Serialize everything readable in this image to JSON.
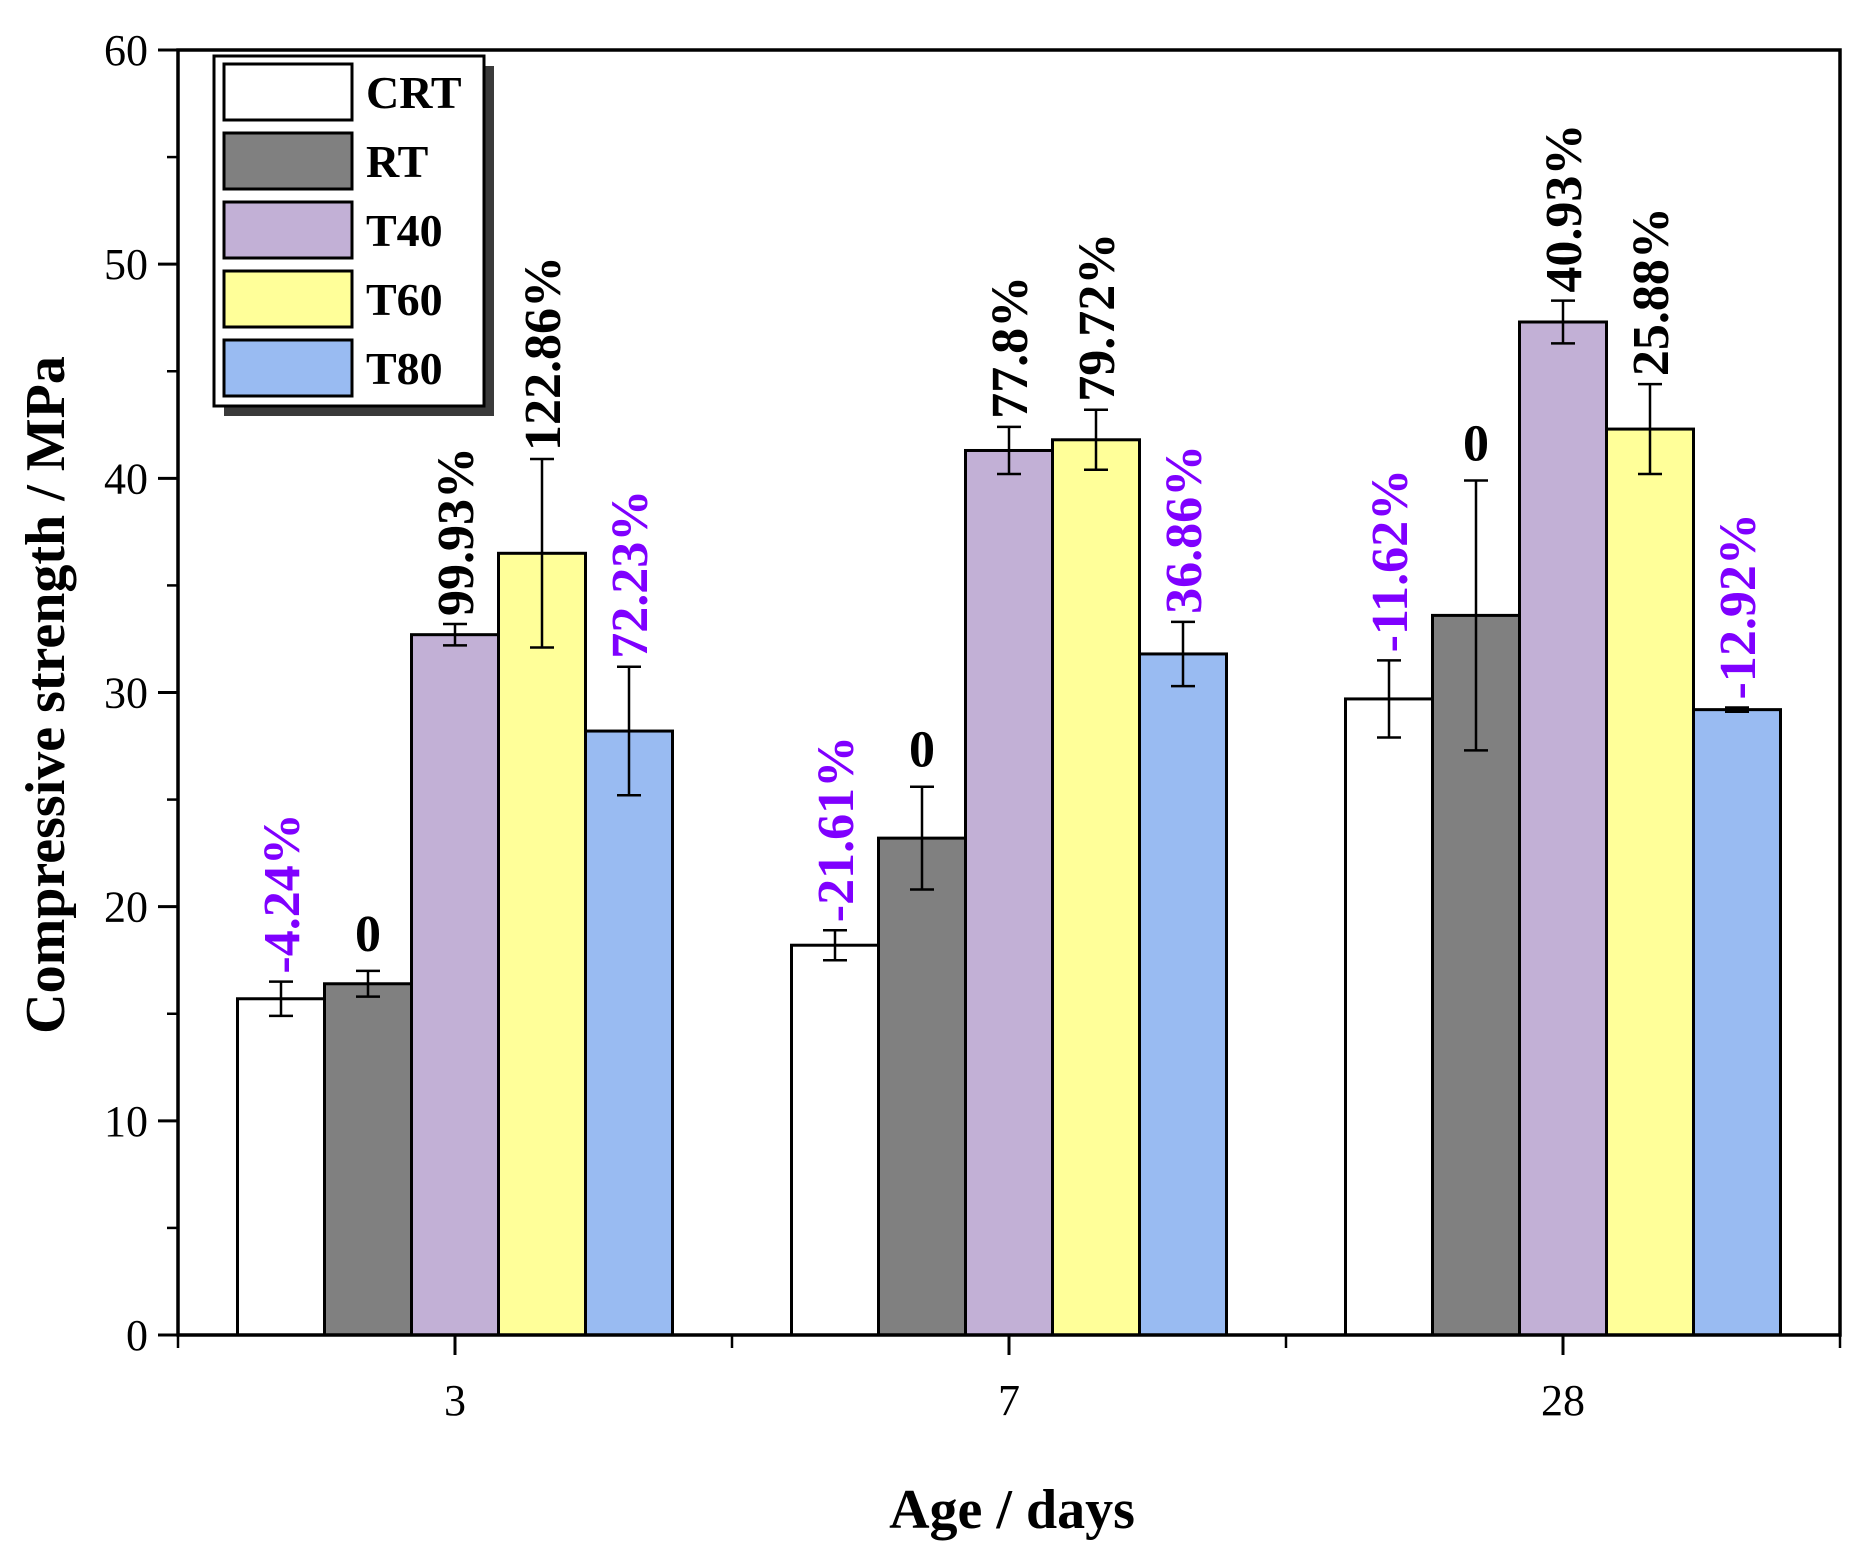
{
  "chart_data": {
    "type": "bar",
    "title": "",
    "xlabel": "Age / days",
    "ylabel": "Compressive strength / MPa",
    "ylim": [
      0,
      60
    ],
    "yticks": [
      0,
      10,
      20,
      30,
      40,
      50,
      60
    ],
    "grid": false,
    "legend_position": "top-left",
    "categories": [
      "3",
      "7",
      "28"
    ],
    "series": [
      {
        "name": "CRT",
        "color": "#ffffff",
        "values": [
          15.7,
          18.2,
          29.7
        ],
        "errors": [
          0.8,
          0.7,
          1.8
        ],
        "labels": [
          "-4.24%",
          "-21.61%",
          "-11.62%"
        ],
        "label_color": "#7f00ff"
      },
      {
        "name": "RT",
        "color": "#808080",
        "values": [
          16.4,
          23.2,
          33.6
        ],
        "errors": [
          0.6,
          2.4,
          6.3
        ],
        "labels": [
          "0",
          "0",
          "0"
        ],
        "label_color": "#000000"
      },
      {
        "name": "T40",
        "color": "#c2b0d6",
        "values": [
          32.7,
          41.3,
          47.3
        ],
        "errors": [
          0.5,
          1.1,
          1.0
        ],
        "labels": [
          "99.93%",
          "77.8%",
          "40.93%"
        ],
        "label_color": "#000000"
      },
      {
        "name": "T60",
        "color": "#ffff99",
        "values": [
          36.5,
          41.8,
          42.3
        ],
        "errors": [
          4.4,
          1.4,
          2.1
        ],
        "labels": [
          "122.86%",
          "79.72%",
          "25.88%"
        ],
        "label_color": "#000000"
      },
      {
        "name": "T80",
        "color": "#99bbf2",
        "values": [
          28.2,
          31.8,
          29.2
        ],
        "errors": [
          3.0,
          1.5,
          0.1
        ],
        "labels": [
          "72.23%",
          "36.86%",
          "-12.92%"
        ],
        "label_color": "#7f00ff"
      }
    ]
  }
}
